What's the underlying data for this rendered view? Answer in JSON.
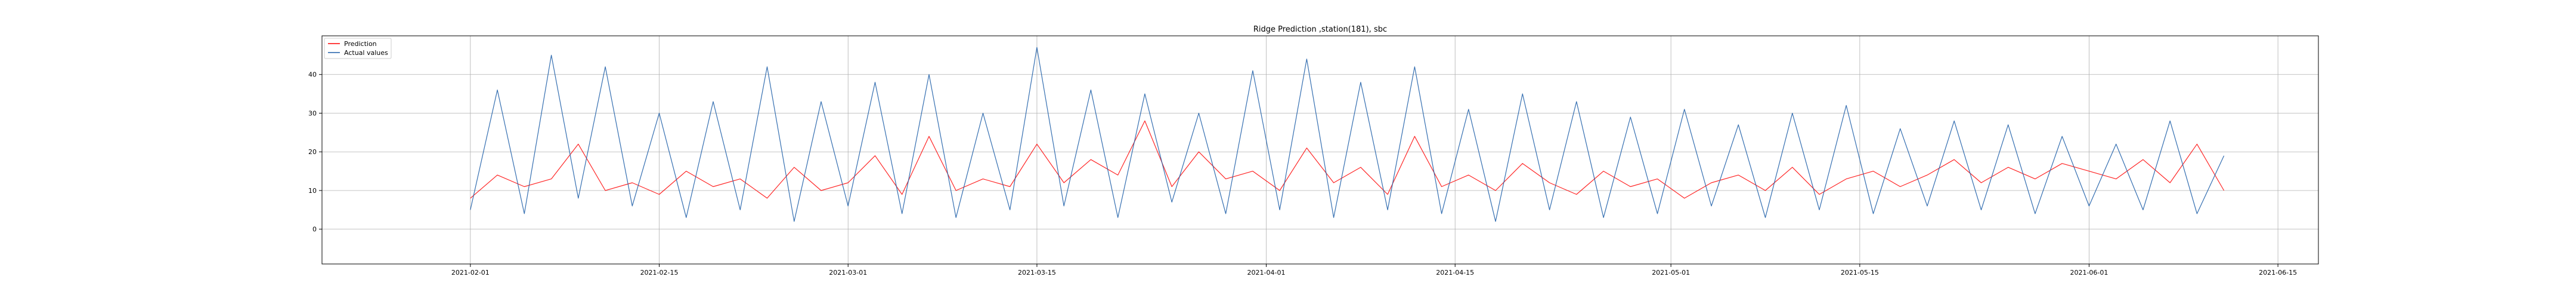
{
  "chart_data": {
    "type": "line",
    "title": "Ridge Prediction ,station(181), sbc",
    "xlabel": "",
    "ylabel": "",
    "x_range": [
      "2021-01-21",
      "2021-06-18"
    ],
    "ylim": [
      -9,
      50
    ],
    "grid": true,
    "legend_position": "top-left",
    "x_ticks": [
      "2021-02-01",
      "2021-02-15",
      "2021-03-01",
      "2021-03-15",
      "2021-04-01",
      "2021-04-15",
      "2021-05-01",
      "2021-05-15",
      "2021-06-01",
      "2021-06-15"
    ],
    "y_ticks": [
      0,
      10,
      20,
      30,
      40
    ],
    "colors": {
      "prediction": "#ff0000",
      "actual": "#1f5fa8"
    },
    "series": [
      {
        "name": "Prediction",
        "color": "#ff0000",
        "x": [
          "2021-02-01",
          "2021-02-03",
          "2021-02-05",
          "2021-02-07",
          "2021-02-09",
          "2021-02-11",
          "2021-02-13",
          "2021-02-15",
          "2021-02-17",
          "2021-02-19",
          "2021-02-21",
          "2021-02-23",
          "2021-02-25",
          "2021-02-27",
          "2021-03-01",
          "2021-03-03",
          "2021-03-05",
          "2021-03-07",
          "2021-03-09",
          "2021-03-11",
          "2021-03-13",
          "2021-03-15",
          "2021-03-17",
          "2021-03-19",
          "2021-03-21",
          "2021-03-23",
          "2021-03-25",
          "2021-03-27",
          "2021-03-29",
          "2021-03-31",
          "2021-04-02",
          "2021-04-04",
          "2021-04-06",
          "2021-04-08",
          "2021-04-10",
          "2021-04-12",
          "2021-04-14",
          "2021-04-16",
          "2021-04-18",
          "2021-04-20",
          "2021-04-22",
          "2021-04-24",
          "2021-04-26",
          "2021-04-28",
          "2021-04-30",
          "2021-05-02",
          "2021-05-04",
          "2021-05-06",
          "2021-05-08",
          "2021-05-10",
          "2021-05-12",
          "2021-05-14",
          "2021-05-16",
          "2021-05-18",
          "2021-05-20",
          "2021-05-22",
          "2021-05-24",
          "2021-05-26",
          "2021-05-28",
          "2021-05-30",
          "2021-06-01",
          "2021-06-03",
          "2021-06-05",
          "2021-06-07",
          "2021-06-09",
          "2021-06-11"
        ],
        "values": [
          8,
          14,
          11,
          13,
          22,
          10,
          12,
          9,
          15,
          11,
          13,
          8,
          16,
          10,
          12,
          19,
          9,
          24,
          10,
          13,
          11,
          22,
          12,
          18,
          14,
          28,
          11,
          20,
          13,
          15,
          10,
          21,
          12,
          16,
          9,
          24,
          11,
          14,
          10,
          17,
          12,
          9,
          15,
          11,
          13,
          8,
          12,
          14,
          10,
          16,
          9,
          13,
          15,
          11,
          14,
          18,
          12,
          16,
          13,
          17,
          15,
          13,
          18,
          12,
          22,
          10
        ]
      },
      {
        "name": "Actual values",
        "color": "#1f5fa8",
        "x": [
          "2021-02-01",
          "2021-02-03",
          "2021-02-05",
          "2021-02-07",
          "2021-02-09",
          "2021-02-11",
          "2021-02-13",
          "2021-02-15",
          "2021-02-17",
          "2021-02-19",
          "2021-02-21",
          "2021-02-23",
          "2021-02-25",
          "2021-02-27",
          "2021-03-01",
          "2021-03-03",
          "2021-03-05",
          "2021-03-07",
          "2021-03-09",
          "2021-03-11",
          "2021-03-13",
          "2021-03-15",
          "2021-03-17",
          "2021-03-19",
          "2021-03-21",
          "2021-03-23",
          "2021-03-25",
          "2021-03-27",
          "2021-03-29",
          "2021-03-31",
          "2021-04-02",
          "2021-04-04",
          "2021-04-06",
          "2021-04-08",
          "2021-04-10",
          "2021-04-12",
          "2021-04-14",
          "2021-04-16",
          "2021-04-18",
          "2021-04-20",
          "2021-04-22",
          "2021-04-24",
          "2021-04-26",
          "2021-04-28",
          "2021-04-30",
          "2021-05-02",
          "2021-05-04",
          "2021-05-06",
          "2021-05-08",
          "2021-05-10",
          "2021-05-12",
          "2021-05-14",
          "2021-05-16",
          "2021-05-18",
          "2021-05-20",
          "2021-05-22",
          "2021-05-24",
          "2021-05-26",
          "2021-05-28",
          "2021-05-30",
          "2021-06-01",
          "2021-06-03",
          "2021-06-05",
          "2021-06-07",
          "2021-06-09",
          "2021-06-11"
        ],
        "values": [
          5,
          36,
          4,
          45,
          8,
          42,
          6,
          30,
          3,
          33,
          5,
          42,
          2,
          33,
          6,
          38,
          4,
          40,
          3,
          30,
          5,
          47,
          6,
          36,
          3,
          35,
          7,
          30,
          4,
          41,
          5,
          44,
          3,
          38,
          5,
          42,
          4,
          31,
          2,
          35,
          5,
          33,
          3,
          29,
          4,
          31,
          6,
          27,
          3,
          30,
          5,
          32,
          4,
          26,
          6,
          28,
          5,
          27,
          4,
          24,
          6,
          22,
          5,
          28,
          4,
          19
        ]
      }
    ]
  }
}
